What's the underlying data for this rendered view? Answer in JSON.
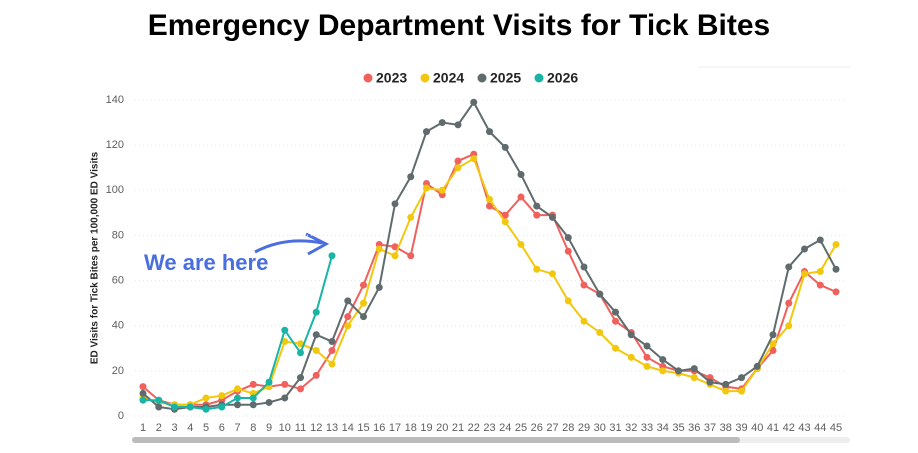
{
  "chart_data": {
    "type": "line",
    "title": "Emergency Department Visits for Tick Bites",
    "y_label": "ED Visits for Tick Bites per 100,000 ED Visits",
    "annotation": "We are here",
    "categories": [
      "1",
      "2",
      "3",
      "4",
      "5",
      "6",
      "7",
      "8",
      "9",
      "10",
      "11",
      "12",
      "13",
      "14",
      "15",
      "16",
      "17",
      "18",
      "19",
      "20",
      "21",
      "22",
      "23",
      "24",
      "25",
      "26",
      "27",
      "28",
      "29",
      "30",
      "31",
      "32",
      "33",
      "34",
      "35",
      "36",
      "37",
      "38",
      "39",
      "40",
      "41",
      "42",
      "43",
      "44",
      "45"
    ],
    "series": [
      {
        "name": "2023",
        "color": "#f0605d",
        "values": [
          13,
          7,
          5,
          5,
          5,
          7,
          11,
          14,
          13,
          14,
          12,
          18,
          29,
          44,
          58,
          76,
          75,
          71,
          103,
          98,
          113,
          116,
          93,
          89,
          97,
          89,
          89,
          73,
          58,
          54,
          42,
          37,
          26,
          22,
          20,
          20,
          17,
          13,
          12,
          21,
          29,
          50,
          64,
          58,
          55
        ]
      },
      {
        "name": "2024",
        "color": "#f2c80f",
        "values": [
          8,
          6,
          5,
          5,
          8,
          9,
          12,
          10,
          13,
          33,
          32,
          29,
          23,
          40,
          50,
          74,
          71,
          88,
          101,
          100,
          110,
          114,
          96,
          86,
          76,
          65,
          63,
          51,
          42,
          37,
          30,
          26,
          22,
          20,
          19,
          17,
          14,
          11,
          11,
          21,
          32,
          40,
          63,
          64,
          76
        ]
      },
      {
        "name": "2025",
        "color": "#5f6b6d",
        "values": [
          10,
          4,
          3,
          4,
          4,
          5,
          5,
          5,
          6,
          8,
          17,
          36,
          33,
          51,
          44,
          57,
          94,
          106,
          126,
          130,
          129,
          139,
          126,
          119,
          107,
          93,
          88,
          79,
          66,
          54,
          46,
          36,
          31,
          25,
          20,
          21,
          15,
          14,
          17,
          22,
          36,
          66,
          74,
          78,
          65
        ]
      },
      {
        "name": "2026",
        "color": "#1ab4a6",
        "values": [
          7,
          7,
          4,
          4,
          3,
          4,
          8,
          8,
          15,
          38,
          28,
          46,
          71,
          null,
          null,
          null,
          null,
          null,
          null,
          null,
          null,
          null,
          null,
          null,
          null,
          null,
          null,
          null,
          null,
          null,
          null,
          null,
          null,
          null,
          null,
          null,
          null,
          null,
          null,
          null,
          null,
          null,
          null,
          null,
          null
        ]
      }
    ],
    "ylim": [
      0,
      140
    ],
    "yticks": [
      0,
      20,
      40,
      60,
      80,
      100,
      120,
      140
    ],
    "grid": true
  }
}
